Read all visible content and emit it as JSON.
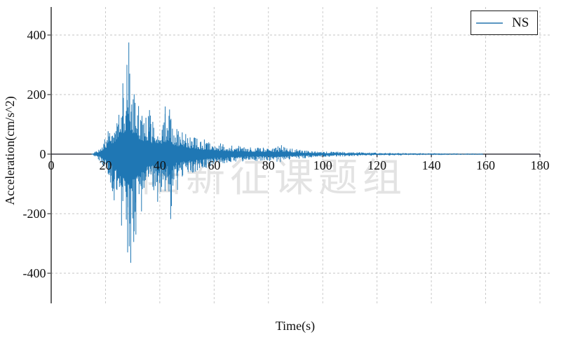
{
  "figure": {
    "watermark": "陆新征课题组",
    "background": "#ffffff"
  },
  "chart_data": {
    "type": "line",
    "title": "",
    "xlabel": "Time(s)",
    "ylabel": "Acceleration(cm/s^2)",
    "xlim": [
      0,
      184
    ],
    "ylim": [
      -500,
      500
    ],
    "xticks": [
      0,
      20,
      40,
      60,
      80,
      100,
      120,
      140,
      160,
      180
    ],
    "yticks": [
      -400,
      -200,
      0,
      200,
      400
    ],
    "grid": "dashed",
    "grid_color": "#c4c4c4",
    "axis_color": "#555555",
    "zero_line_color": "#15151f",
    "legend": {
      "position": "upper right",
      "entries": [
        {
          "label": "NS",
          "color": "#1f77b4"
        }
      ]
    },
    "series": [
      {
        "name": "NS",
        "color": "#1f77b4",
        "units": "cm/s^2",
        "description": "Seismic acceleration time history (NS component). Quiet until ~15 s, strong shaking 20-45 s, peak +375 cm/s^2 at ~28.6 s and -365 cm/s^2 at ~29.3 s, coda decaying to ~0 until record ends near 159 s.",
        "t_start": 15.0,
        "t_end": 159.0,
        "peak_positive": {
          "t": 28.6,
          "value": 375
        },
        "peak_negative": {
          "t": 29.3,
          "value": -365
        },
        "envelope_t": [
          0,
          15,
          16,
          17,
          18,
          19,
          20,
          21,
          22,
          23,
          24,
          25,
          26,
          27,
          28,
          28.6,
          29.3,
          30,
          31,
          32,
          33,
          34,
          35,
          36,
          37,
          38,
          39,
          40,
          41,
          42,
          43,
          44,
          45,
          46,
          48,
          50,
          52,
          55,
          58,
          60,
          63,
          66,
          70,
          74,
          78,
          82,
          85,
          88,
          92,
          96,
          100,
          105,
          110,
          115,
          120,
          125,
          130,
          140,
          150,
          159
        ],
        "envelope_pos": [
          0.5,
          2,
          8,
          15,
          25,
          40,
          65,
          85,
          100,
          125,
          145,
          175,
          210,
          245,
          285,
          375,
          255,
          225,
          200,
          178,
          152,
          138,
          152,
          148,
          122,
          128,
          118,
          128,
          112,
          138,
          118,
          148,
          102,
          92,
          82,
          70,
          62,
          52,
          46,
          42,
          36,
          31,
          27,
          25,
          23,
          24,
          28,
          19,
          15,
          12,
          10,
          8.5,
          7,
          6,
          5,
          4.5,
          4,
          3,
          2.5,
          2
        ],
        "envelope_neg": [
          0.5,
          2,
          8,
          15,
          28,
          45,
          60,
          95,
          120,
          155,
          165,
          205,
          235,
          285,
          330,
          310,
          365,
          285,
          265,
          235,
          205,
          165,
          145,
          132,
          122,
          132,
          118,
          132,
          122,
          152,
          132,
          218,
          112,
          97,
          87,
          73,
          64,
          53,
          47,
          42,
          36,
          31,
          27,
          25,
          23,
          24,
          28,
          19,
          15,
          12,
          10,
          8.5,
          7,
          6,
          5,
          4.5,
          4,
          3,
          2.5,
          2
        ],
        "spikes": [
          [
            26.4,
            238
          ],
          [
            25.9,
            -240
          ],
          [
            27.9,
            300
          ],
          [
            28.15,
            -330
          ],
          [
            28.6,
            375
          ],
          [
            29.3,
            -365
          ],
          [
            30.4,
            -295
          ],
          [
            31.2,
            -270
          ],
          [
            23.2,
            -155
          ],
          [
            36.2,
            148
          ],
          [
            39.2,
            -160
          ],
          [
            42.0,
            160
          ],
          [
            43.6,
            150
          ],
          [
            44.0,
            -218
          ],
          [
            46.5,
            -120
          ],
          [
            84.8,
            30
          ]
        ]
      }
    ]
  }
}
